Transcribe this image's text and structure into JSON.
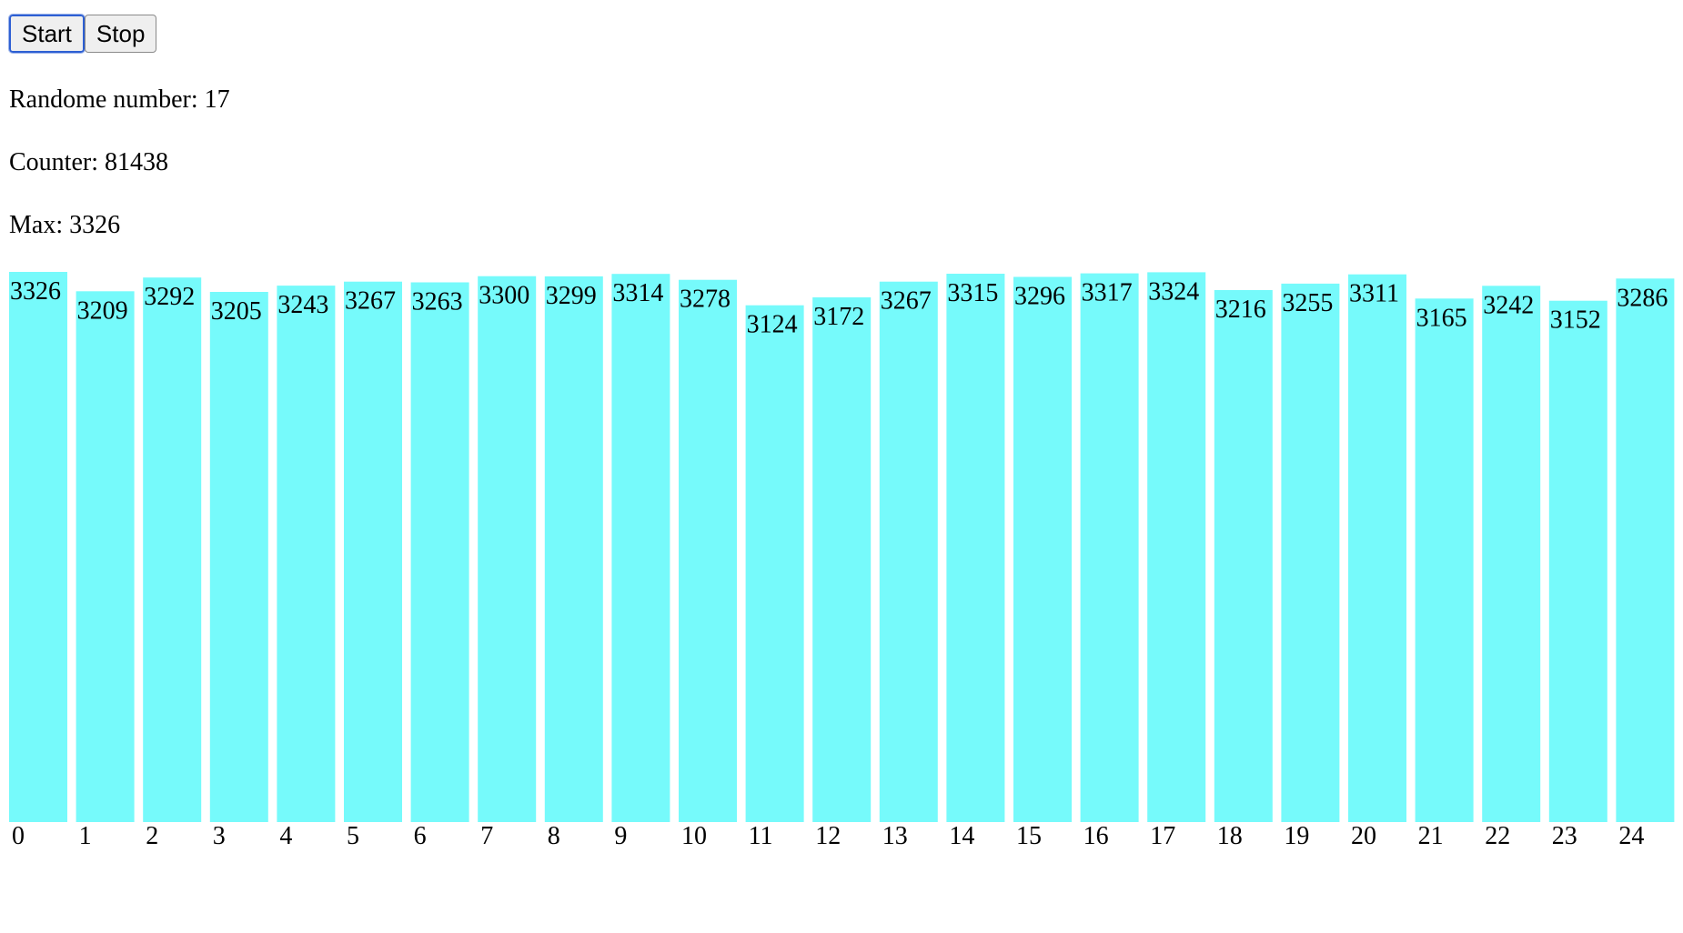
{
  "controls": {
    "start_label": "Start",
    "stop_label": "Stop"
  },
  "stats": {
    "random_label": "Randome number: ",
    "random_value": "17",
    "counter_label": "Counter: ",
    "counter_value": "81438",
    "max_label": "Max: ",
    "max_value": "3326"
  },
  "chart_data": {
    "type": "bar",
    "categories": [
      "0",
      "1",
      "2",
      "3",
      "4",
      "5",
      "6",
      "7",
      "8",
      "9",
      "10",
      "11",
      "12",
      "13",
      "14",
      "15",
      "16",
      "17",
      "18",
      "19",
      "20",
      "21",
      "22",
      "23",
      "24"
    ],
    "values": [
      3326,
      3209,
      3292,
      3205,
      3243,
      3267,
      3263,
      3300,
      3299,
      3314,
      3278,
      3124,
      3172,
      3267,
      3315,
      3296,
      3317,
      3324,
      3216,
      3255,
      3311,
      3165,
      3242,
      3152,
      3286
    ],
    "bar_color": "#76fafb",
    "ylim": [
      0,
      3326
    ]
  }
}
